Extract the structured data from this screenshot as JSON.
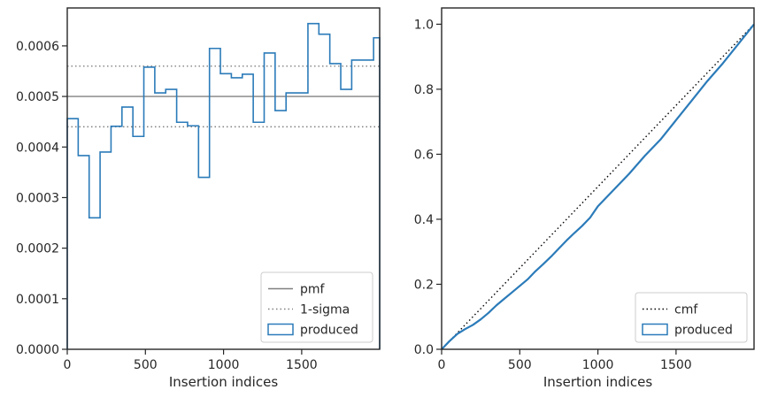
{
  "colors": {
    "produced": "#2b7bb9",
    "pmf": "#808080",
    "sigma": "#808080",
    "cmf": "#000000",
    "axis": "#262626",
    "legend_border": "#cccccc"
  },
  "chart_data": [
    {
      "type": "histogram-step",
      "xlabel": "Insertion indices",
      "ylabel": "",
      "xlim": [
        0,
        1999
      ],
      "ylim": [
        0,
        0.000675
      ],
      "x_ticks": [
        0,
        500,
        1000,
        1500
      ],
      "x_tick_labels": [
        "0",
        "500",
        "1000",
        "1500"
      ],
      "y_ticks": [
        0,
        0.0001,
        0.0002,
        0.0003,
        0.0004,
        0.0005,
        0.0006
      ],
      "y_tick_labels": [
        "0.0000",
        "0.0001",
        "0.0002",
        "0.0003",
        "0.0004",
        "0.0005",
        "0.0006"
      ],
      "legend": {
        "placement": "lower-right",
        "entries": [
          "pmf",
          "1-sigma",
          "produced"
        ]
      },
      "pmf": {
        "name": "pmf",
        "value": 0.0005
      },
      "sigma": {
        "name": "1-sigma",
        "values": [
          0.00044,
          0.00056
        ]
      },
      "produced": {
        "name": "produced",
        "bin_edges": [
          0,
          70,
          140,
          210,
          280,
          350,
          420,
          490,
          560,
          630,
          700,
          770,
          840,
          910,
          980,
          1050,
          1120,
          1190,
          1260,
          1330,
          1400,
          1470,
          1540,
          1610,
          1680,
          1750,
          1820,
          1890,
          1960,
          1999
        ],
        "values": [
          0.000456,
          0.000383,
          0.00026,
          0.00039,
          0.000441,
          0.000479,
          0.000421,
          0.000558,
          0.000507,
          0.000514,
          0.000449,
          0.000442,
          0.00034,
          0.000595,
          0.000545,
          0.000537,
          0.000544,
          0.000449,
          0.000586,
          0.000472,
          0.000507,
          0.000507,
          0.000644,
          0.000623,
          0.000565,
          0.000514,
          0.000572,
          0.000572,
          0.000616
        ]
      }
    },
    {
      "type": "line",
      "xlabel": "Insertion indices",
      "ylabel": "",
      "xlim": [
        0,
        1999
      ],
      "ylim": [
        0,
        1.05
      ],
      "x_ticks": [
        0,
        500,
        1000,
        1500
      ],
      "x_tick_labels": [
        "0",
        "500",
        "1000",
        "1500"
      ],
      "y_ticks": [
        0,
        0.2,
        0.4,
        0.6,
        0.8,
        1.0
      ],
      "y_tick_labels": [
        "0.0",
        "0.2",
        "0.4",
        "0.6",
        "0.8",
        "1.0"
      ],
      "legend": {
        "placement": "lower-right",
        "entries": [
          "cmf",
          "produced"
        ]
      },
      "cmf": {
        "name": "cmf",
        "x": [
          0,
          1999
        ],
        "y": [
          0,
          1.0
        ]
      },
      "produced": {
        "name": "produced",
        "x": [
          0,
          50,
          100,
          150,
          200,
          250,
          300,
          350,
          400,
          450,
          500,
          550,
          600,
          650,
          700,
          750,
          800,
          850,
          900,
          950,
          1000,
          1100,
          1200,
          1300,
          1400,
          1500,
          1600,
          1700,
          1800,
          1900,
          1999
        ],
        "y": [
          0,
          0.025,
          0.047,
          0.062,
          0.075,
          0.092,
          0.112,
          0.135,
          0.155,
          0.175,
          0.195,
          0.215,
          0.24,
          0.262,
          0.285,
          0.31,
          0.335,
          0.358,
          0.38,
          0.405,
          0.44,
          0.49,
          0.54,
          0.595,
          0.645,
          0.705,
          0.765,
          0.825,
          0.88,
          0.94,
          1.0
        ]
      }
    }
  ]
}
